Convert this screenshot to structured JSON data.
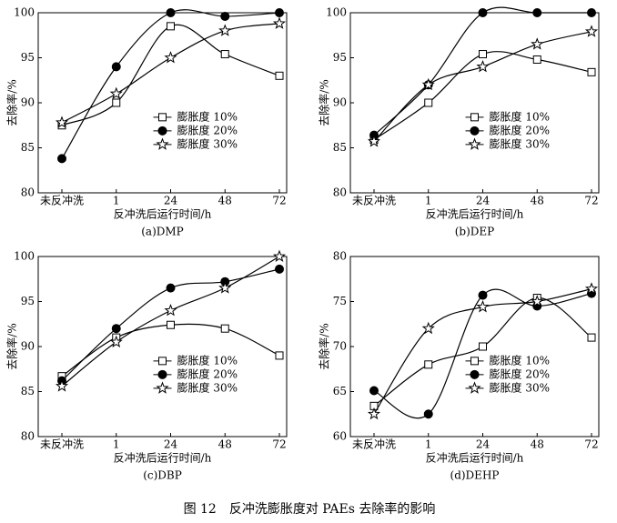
{
  "caption": "图 12　反冲洗膨胀度对 PAEs 去除率的影响",
  "chart_data": [
    {
      "type": "line",
      "title": "(a)DMP",
      "x_label": "反冲洗后运行时间/h",
      "y_label": "去除率/%",
      "categories": [
        "未反冲洗",
        "1",
        "24",
        "48",
        "72"
      ],
      "ylim": [
        80,
        100
      ],
      "yticks": [
        80,
        85,
        90,
        95,
        100
      ],
      "legend": "center",
      "series": [
        {
          "name": "膨胀度 10%",
          "color": "#000000",
          "marker": "square",
          "values": [
            87.5,
            90,
            98.5,
            95.4,
            93
          ]
        },
        {
          "name": "膨胀度 20%",
          "color": "#000000",
          "marker": "circle",
          "values": [
            83.8,
            94,
            100,
            99.6,
            100
          ]
        },
        {
          "name": "膨胀度 30%",
          "color": "#000000",
          "marker": "star",
          "values": [
            87.8,
            91,
            95,
            98,
            98.8
          ]
        }
      ]
    },
    {
      "type": "line",
      "title": "(b)DEP",
      "x_label": "反冲洗后运行时间/h",
      "y_label": "去除率/%",
      "categories": [
        "未反冲洗",
        "1",
        "24",
        "48",
        "72"
      ],
      "ylim": [
        80,
        100
      ],
      "yticks": [
        80,
        85,
        90,
        95,
        100
      ],
      "legend": "center",
      "series": [
        {
          "name": "膨胀度 10%",
          "color": "#000000",
          "marker": "square",
          "values": [
            85.9,
            90,
            95.4,
            94.8,
            93.4
          ]
        },
        {
          "name": "膨胀度 20%",
          "color": "#000000",
          "marker": "circle",
          "values": [
            86.4,
            92,
            100,
            100,
            100
          ]
        },
        {
          "name": "膨胀度 30%",
          "color": "#000000",
          "marker": "star",
          "values": [
            85.7,
            92,
            94,
            96.5,
            97.9
          ]
        }
      ]
    },
    {
      "type": "line",
      "title": "(c)DBP",
      "x_label": "反冲洗后运行时间/h",
      "y_label": "去除率/%",
      "categories": [
        "未反冲洗",
        "1",
        "24",
        "48",
        "72"
      ],
      "ylim": [
        80,
        100
      ],
      "yticks": [
        80,
        85,
        90,
        95,
        100
      ],
      "legend": "center",
      "series": [
        {
          "name": "膨胀度 10%",
          "color": "#000000",
          "marker": "square",
          "values": [
            86.7,
            91,
            92.4,
            92,
            89
          ]
        },
        {
          "name": "膨胀度 20%",
          "color": "#000000",
          "marker": "circle",
          "values": [
            86.2,
            92,
            96.5,
            97.2,
            98.6
          ]
        },
        {
          "name": "膨胀度 30%",
          "color": "#000000",
          "marker": "star",
          "values": [
            85.6,
            90.5,
            94,
            96.5,
            100
          ]
        }
      ]
    },
    {
      "type": "line",
      "title": "(d)DEHP",
      "x_label": "反冲洗后运行时间/h",
      "y_label": "去除率/%",
      "categories": [
        "未反冲洗",
        "1",
        "24",
        "48",
        "72"
      ],
      "ylim": [
        60,
        80
      ],
      "yticks": [
        60,
        65,
        70,
        75,
        80
      ],
      "legend": "center",
      "series": [
        {
          "name": "膨胀度 10%",
          "color": "#000000",
          "marker": "square",
          "values": [
            63.4,
            68,
            70,
            75.4,
            71
          ]
        },
        {
          "name": "膨胀度 20%",
          "color": "#000000",
          "marker": "circle",
          "values": [
            65.1,
            62.5,
            75.7,
            74.5,
            75.9
          ]
        },
        {
          "name": "膨胀度 30%",
          "color": "#000000",
          "marker": "star",
          "values": [
            62.5,
            72,
            74.4,
            75,
            76.4
          ]
        }
      ]
    }
  ]
}
